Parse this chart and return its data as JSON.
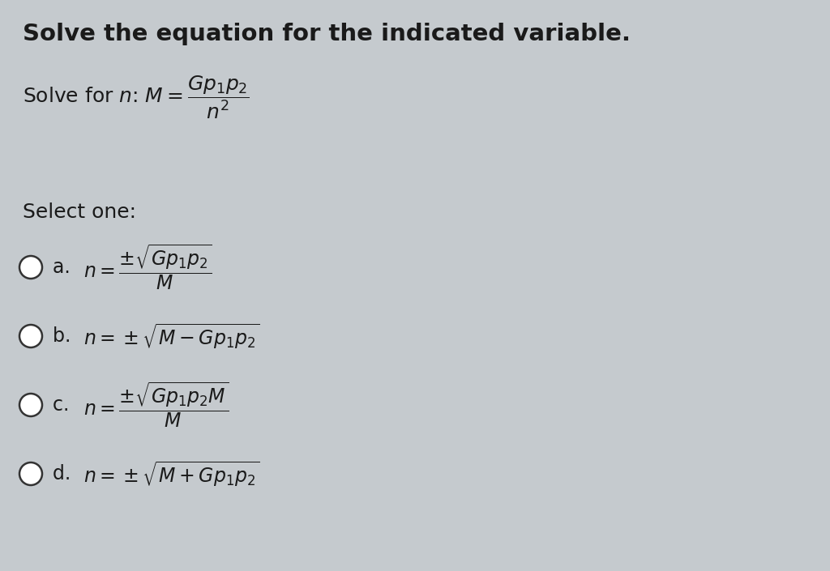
{
  "title": "Solve the equation for the indicated variable.",
  "background_color": "#c5cace",
  "text_color": "#1a1a1a",
  "title_fontsize": 21,
  "problem_label": "Solve for ",
  "problem_n": "n",
  "problem_rest": ": ",
  "problem_math": "$M = \\dfrac{Gp_1p_2}{n^2}$",
  "select_one": "Select one:",
  "options": [
    {
      "label": "a. ",
      "math": "$n = \\dfrac{\\pm\\sqrt{Gp_1p_2}}{M}$"
    },
    {
      "label": "b. ",
      "math": "$n = \\pm\\sqrt{M - Gp_1p_2}$"
    },
    {
      "label": "c. ",
      "math": "$n = \\dfrac{\\pm\\sqrt{Gp_1p_2M}}{M}$"
    },
    {
      "label": "d. ",
      "math": "$n = \\pm\\sqrt{M + Gp_1p_2}$"
    }
  ],
  "figsize": [
    10.24,
    7.05
  ],
  "dpi": 100
}
